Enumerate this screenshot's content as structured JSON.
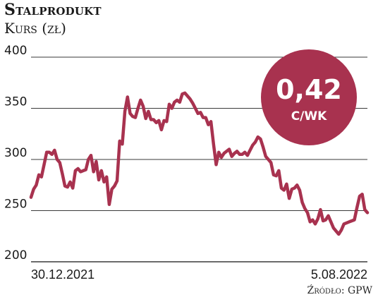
{
  "header": {
    "title": "Stalprodukt",
    "subtitle": "Kurs (zł)"
  },
  "source": "Źródło: GPW",
  "badge": {
    "value": "0,42",
    "unit": "C/WK",
    "color": "#a8324f"
  },
  "chart_data": {
    "type": "line",
    "title": "Stalprodukt",
    "subtitle": "Kurs (zł)",
    "ylim": [
      200,
      400
    ],
    "yticks": [
      200,
      250,
      300,
      350,
      400
    ],
    "x_start_label": "30.12.2021",
    "x_end_label": "5.08.2022",
    "grid": true,
    "line_color": "#a8324f",
    "series": [
      {
        "values": [
          263,
          271,
          275,
          285,
          283,
          295,
          307,
          307,
          305,
          309,
          300,
          297,
          286,
          274,
          273,
          278,
          272,
          289,
          291,
          288,
          289,
          290,
          300,
          304,
          288,
          298,
          280,
          289,
          278,
          283,
          256,
          271,
          274,
          279,
          318,
          315,
          347,
          361,
          345,
          342,
          341,
          350,
          358,
          352,
          340,
          347,
          339,
          339,
          336,
          338,
          329,
          338,
          337,
          354,
          350,
          356,
          358,
          356,
          364,
          365,
          362,
          359,
          355,
          350,
          345,
          346,
          341,
          341,
          334,
          337,
          315,
          295,
          307,
          302,
          306,
          308,
          310,
          303,
          306,
          308,
          305,
          305,
          307,
          304,
          309,
          314,
          317,
          322,
          320,
          312,
          303,
          300,
          297,
          285,
          284,
          289,
          272,
          270,
          276,
          262,
          271,
          272,
          275,
          270,
          258,
          252,
          248,
          239,
          241,
          237,
          242,
          251,
          240,
          241,
          245,
          239,
          233,
          230,
          227,
          231,
          237,
          238,
          239,
          240,
          241,
          253,
          264,
          266,
          251,
          248
        ]
      }
    ]
  }
}
